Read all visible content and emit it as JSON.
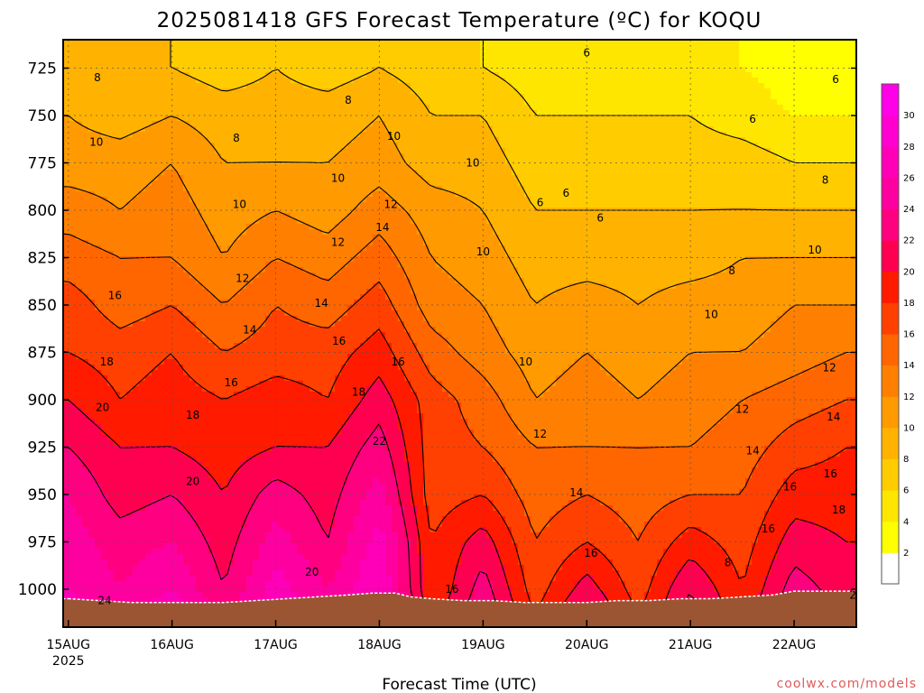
{
  "chart_data": {
    "type": "heatmap",
    "title": "2025081418 GFS Forecast Temperature (ºC) for KOQU",
    "xlabel": "Forecast Time (UTC)",
    "ylabel": "",
    "credit": "coolwx.com/models",
    "y_axis": {
      "type": "pressure",
      "reversed": true,
      "range": [
        710,
        1020
      ],
      "ticks": [
        725,
        750,
        775,
        800,
        825,
        850,
        875,
        900,
        925,
        950,
        975,
        1000
      ]
    },
    "x_axis": {
      "range": [
        -0.05,
        7.6
      ],
      "ticks": [
        {
          "x": 0,
          "label": "15AUG",
          "sublabel": "2025"
        },
        {
          "x": 1,
          "label": "16AUG"
        },
        {
          "x": 2,
          "label": "17AUG"
        },
        {
          "x": 3,
          "label": "18AUG"
        },
        {
          "x": 4,
          "label": "19AUG"
        },
        {
          "x": 5,
          "label": "20AUG"
        },
        {
          "x": 6,
          "label": "21AUG"
        },
        {
          "x": 7,
          "label": "22AUG"
        }
      ]
    },
    "grid": true,
    "colorbar": {
      "labels": [
        2,
        4,
        6,
        8,
        10,
        12,
        14,
        16,
        18,
        20,
        22,
        24,
        26,
        28,
        30
      ],
      "bins": [
        {
          "from": 0,
          "to": 2,
          "color": "#ffffff"
        },
        {
          "from": 2,
          "to": 4,
          "color": "#ffff00"
        },
        {
          "from": 4,
          "to": 6,
          "color": "#ffe600"
        },
        {
          "from": 6,
          "to": 8,
          "color": "#ffcc00"
        },
        {
          "from": 8,
          "to": 10,
          "color": "#ffb300"
        },
        {
          "from": 10,
          "to": 12,
          "color": "#ff9a00"
        },
        {
          "from": 12,
          "to": 14,
          "color": "#ff8000"
        },
        {
          "from": 14,
          "to": 16,
          "color": "#ff6600"
        },
        {
          "from": 16,
          "to": 18,
          "color": "#ff4000"
        },
        {
          "from": 18,
          "to": 20,
          "color": "#ff1a00"
        },
        {
          "from": 20,
          "to": 22,
          "color": "#ff0050"
        },
        {
          "from": 22,
          "to": 24,
          "color": "#ff0080"
        },
        {
          "from": 24,
          "to": 26,
          "color": "#ff00a0"
        },
        {
          "from": 26,
          "to": 28,
          "color": "#ff00b8"
        },
        {
          "from": 28,
          "to": 30,
          "color": "#ff00d0"
        },
        {
          "from": 30,
          "to": 32,
          "color": "#ff00e8"
        }
      ]
    },
    "surface_pressure": [
      [
        0,
        1005
      ],
      [
        0.3,
        1006
      ],
      [
        0.6,
        1007
      ],
      [
        0.9,
        1007
      ],
      [
        1.2,
        1007
      ],
      [
        1.5,
        1007
      ],
      [
        1.8,
        1006
      ],
      [
        2.1,
        1005
      ],
      [
        2.4,
        1004
      ],
      [
        2.7,
        1003
      ],
      [
        2.95,
        1002
      ],
      [
        3.15,
        1002
      ],
      [
        3.3,
        1004
      ],
      [
        3.5,
        1005
      ],
      [
        3.8,
        1006
      ],
      [
        4.1,
        1006
      ],
      [
        4.4,
        1007
      ],
      [
        4.7,
        1007
      ],
      [
        5.0,
        1007
      ],
      [
        5.3,
        1006
      ],
      [
        5.6,
        1006
      ],
      [
        5.9,
        1005
      ],
      [
        6.2,
        1005
      ],
      [
        6.5,
        1004
      ],
      [
        6.8,
        1003
      ],
      [
        7.0,
        1001
      ],
      [
        7.2,
        1001
      ],
      [
        7.4,
        1001
      ],
      [
        7.5,
        1001
      ]
    ],
    "surface_color": "#9c5532",
    "temperature_profiles": {
      "levels": [
        725,
        750,
        775,
        800,
        825,
        850,
        875,
        900,
        925,
        950,
        975,
        1000,
        1015
      ],
      "times": [
        0,
        0.5,
        1.0,
        1.5,
        2.0,
        2.5,
        3.0,
        3.5,
        4.0,
        4.5,
        5.0,
        5.5,
        6.0,
        6.5,
        7.0,
        7.5
      ],
      "values": [
        [
          8,
          10,
          11,
          13,
          15,
          17,
          18,
          20,
          22,
          24,
          25,
          26,
          28
        ],
        [
          8,
          9,
          11,
          12,
          14,
          15,
          17,
          18,
          20,
          21,
          23,
          24,
          26
        ],
        [
          8,
          10,
          12,
          13,
          14,
          16,
          18,
          19,
          20,
          22,
          24,
          26,
          28
        ],
        [
          7,
          9,
          10,
          11,
          12,
          14,
          16,
          18,
          19,
          20,
          21,
          22,
          24
        ],
        [
          8,
          9,
          10,
          12,
          14,
          16,
          17,
          19,
          20,
          23,
          25,
          27,
          28
        ],
        [
          7,
          9,
          10,
          11,
          13,
          15,
          17,
          18,
          20,
          21,
          22,
          24,
          26
        ],
        [
          8,
          10,
          11,
          13,
          15,
          17,
          19,
          21,
          23,
          25,
          27,
          28,
          30
        ],
        [
          7,
          8,
          9,
          11,
          12,
          13,
          15,
          17,
          17,
          17,
          18,
          18,
          19
        ],
        [
          6,
          8,
          9,
          10,
          11,
          12,
          13,
          15,
          16,
          18,
          21,
          23,
          24
        ],
        [
          5,
          6,
          7,
          8,
          9,
          10,
          11,
          12,
          14,
          15,
          16,
          17,
          18
        ],
        [
          5,
          6,
          7,
          8,
          9,
          11,
          12,
          13,
          14,
          16,
          18,
          21,
          23
        ],
        [
          5,
          6,
          7,
          8,
          9,
          10,
          11,
          12,
          14,
          15,
          16,
          17,
          18
        ],
        [
          4,
          6,
          7,
          8,
          9,
          11,
          12,
          13,
          14,
          16,
          19,
          22,
          23
        ],
        [
          4,
          5,
          7,
          8,
          10,
          11,
          12,
          14,
          15,
          16,
          17,
          18,
          19
        ],
        [
          3,
          4,
          6,
          8,
          10,
          12,
          13,
          15,
          17,
          19,
          21,
          23,
          24
        ],
        [
          2,
          4,
          6,
          8,
          10,
          12,
          14,
          16,
          18,
          19,
          20,
          21,
          22
        ]
      ]
    },
    "contour_levels": [
      6,
      8,
      10,
      12,
      14,
      16,
      18,
      20,
      22
    ],
    "contour_labels": [
      {
        "x": 0.28,
        "p": 730,
        "text": "8"
      },
      {
        "x": 1.62,
        "p": 762,
        "text": "8"
      },
      {
        "x": 2.7,
        "p": 742,
        "text": "8"
      },
      {
        "x": 5.0,
        "p": 717,
        "text": "6"
      },
      {
        "x": 6.6,
        "p": 752,
        "text": "6"
      },
      {
        "x": 7.4,
        "p": 731,
        "text": "6"
      },
      {
        "x": 4.55,
        "p": 796,
        "text": "6"
      },
      {
        "x": 4.8,
        "p": 791,
        "text": "6"
      },
      {
        "x": 5.13,
        "p": 804,
        "text": "6"
      },
      {
        "x": 0.27,
        "p": 764,
        "text": "10"
      },
      {
        "x": 1.65,
        "p": 797,
        "text": "10"
      },
      {
        "x": 2.6,
        "p": 783,
        "text": "10"
      },
      {
        "x": 3.14,
        "p": 761,
        "text": "10"
      },
      {
        "x": 3.9,
        "p": 775,
        "text": "10"
      },
      {
        "x": 4.0,
        "p": 822,
        "text": "10"
      },
      {
        "x": 7.3,
        "p": 784,
        "text": "8"
      },
      {
        "x": 6.4,
        "p": 832,
        "text": "8"
      },
      {
        "x": 1.68,
        "p": 836,
        "text": "12"
      },
      {
        "x": 2.6,
        "p": 817,
        "text": "12"
      },
      {
        "x": 3.11,
        "p": 797,
        "text": "12"
      },
      {
        "x": 7.2,
        "p": 821,
        "text": "10"
      },
      {
        "x": 6.2,
        "p": 855,
        "text": "10"
      },
      {
        "x": 4.41,
        "p": 880,
        "text": "10"
      },
      {
        "x": 2.44,
        "p": 849,
        "text": "14"
      },
      {
        "x": 3.03,
        "p": 809,
        "text": "14"
      },
      {
        "x": 1.75,
        "p": 863,
        "text": "14"
      },
      {
        "x": 0.45,
        "p": 845,
        "text": "16"
      },
      {
        "x": 2.61,
        "p": 869,
        "text": "16"
      },
      {
        "x": 3.18,
        "p": 880,
        "text": "16"
      },
      {
        "x": 1.57,
        "p": 891,
        "text": "16"
      },
      {
        "x": 7.34,
        "p": 883,
        "text": "12"
      },
      {
        "x": 6.5,
        "p": 905,
        "text": "12"
      },
      {
        "x": 4.55,
        "p": 918,
        "text": "12"
      },
      {
        "x": 0.37,
        "p": 880,
        "text": "18"
      },
      {
        "x": 2.8,
        "p": 896,
        "text": "18"
      },
      {
        "x": 1.2,
        "p": 908,
        "text": "18"
      },
      {
        "x": 0.33,
        "p": 904,
        "text": "20"
      },
      {
        "x": 1.2,
        "p": 943,
        "text": "20"
      },
      {
        "x": 2.35,
        "p": 991,
        "text": "20"
      },
      {
        "x": 3.0,
        "p": 922,
        "text": "22"
      },
      {
        "x": 7.38,
        "p": 909,
        "text": "14"
      },
      {
        "x": 6.6,
        "p": 927,
        "text": "14"
      },
      {
        "x": 4.9,
        "p": 949,
        "text": "14"
      },
      {
        "x": 7.35,
        "p": 939,
        "text": "16"
      },
      {
        "x": 6.96,
        "p": 946,
        "text": "16"
      },
      {
        "x": 6.75,
        "p": 968,
        "text": "16"
      },
      {
        "x": 5.04,
        "p": 981,
        "text": "16"
      },
      {
        "x": 3.7,
        "p": 1000,
        "text": "16"
      },
      {
        "x": 6.36,
        "p": 986,
        "text": "8"
      },
      {
        "x": 7.43,
        "p": 958,
        "text": "18"
      },
      {
        "x": 7.85,
        "p": 910,
        "text": "20"
      },
      {
        "x": 8.1,
        "p": 910,
        "text": "20"
      },
      {
        "x": 0.35,
        "p": 1006,
        "text": "24"
      },
      {
        "x": 7.6,
        "p": 1003,
        "text": "22"
      }
    ]
  }
}
